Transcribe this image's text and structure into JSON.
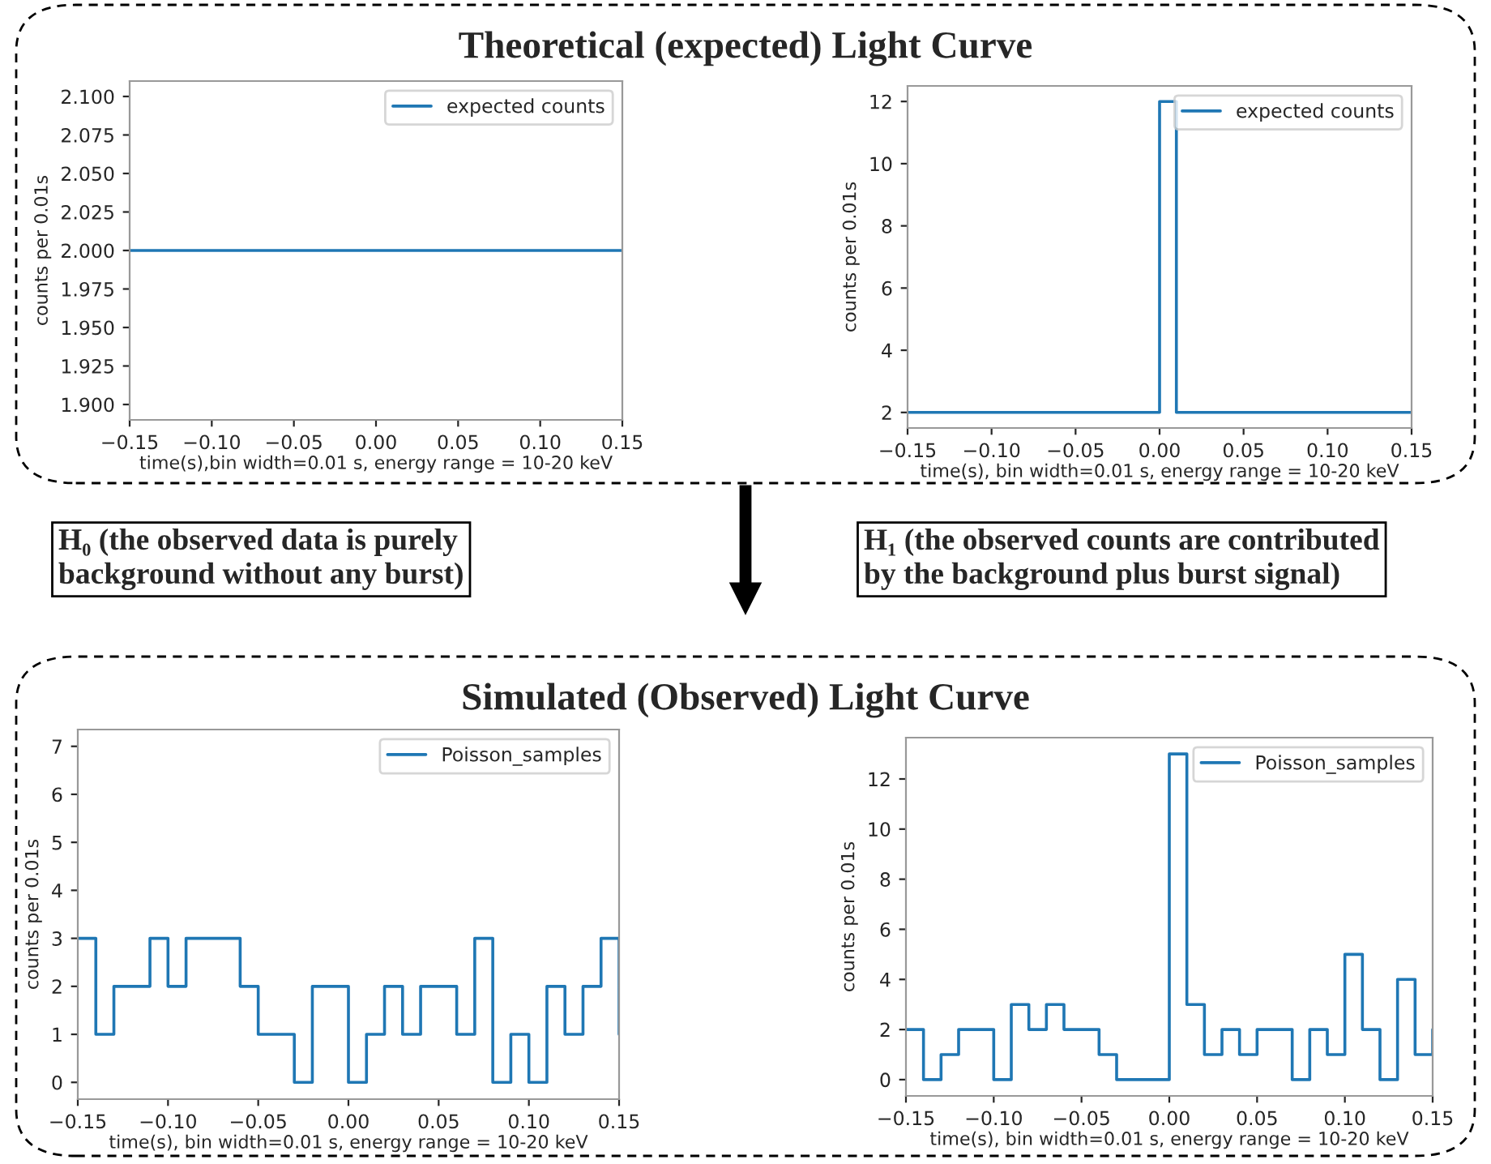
{
  "chart_data": [
    {
      "type": "step",
      "title": "Theoretical (expected) Light Curve",
      "xlabel": "time(s),bin width=0.01 s, energy range = 10-20 keV",
      "ylabel": "counts per 0.01s",
      "annotations": [
        "H₀ (the observed data is purely\nbackground without any burst)"
      ],
      "x": [
        -0.15,
        -0.14,
        -0.13,
        -0.12,
        -0.11,
        -0.1,
        -0.09,
        -0.08,
        -0.07,
        -0.06,
        -0.05,
        -0.04,
        -0.03,
        -0.02,
        -0.01,
        0.0,
        0.01,
        0.02,
        0.03,
        0.04,
        0.05,
        0.06,
        0.07,
        0.08,
        0.09,
        0.1,
        0.11,
        0.12,
        0.13,
        0.14,
        0.15
      ],
      "series": [
        {
          "name": "expected counts",
          "color": "#1f77b4",
          "values": [
            2,
            2,
            2,
            2,
            2,
            2,
            2,
            2,
            2,
            2,
            2,
            2,
            2,
            2,
            2,
            2,
            2,
            2,
            2,
            2,
            2,
            2,
            2,
            2,
            2,
            2,
            2,
            2,
            2,
            2,
            2
          ]
        }
      ],
      "xlim": [
        -0.15,
        0.15
      ],
      "xticks": [
        {
          "value": -0.15,
          "label": "−0.15"
        },
        {
          "value": -0.1,
          "label": "−0.10"
        },
        {
          "value": -0.05,
          "label": "−0.05"
        },
        {
          "value": 0,
          "label": "0.00"
        },
        {
          "value": 0.05,
          "label": "0.05"
        },
        {
          "value": 0.1,
          "label": "0.10"
        },
        {
          "value": 0.15,
          "label": "0.15"
        }
      ],
      "ylim": [
        1.89,
        2.11
      ],
      "yticks": [
        {
          "value": 1.9,
          "label": "1.900"
        },
        {
          "value": 1.925,
          "label": "1.925"
        },
        {
          "value": 1.95,
          "label": "1.950"
        },
        {
          "value": 1.975,
          "label": "1.975"
        },
        {
          "value": 2.0,
          "label": "2.000"
        },
        {
          "value": 2.025,
          "label": "2.025"
        },
        {
          "value": 2.05,
          "label": "2.050"
        },
        {
          "value": 2.075,
          "label": "2.075"
        },
        {
          "value": 2.1,
          "label": "2.100"
        }
      ],
      "legend": "top right",
      "grid": false
    },
    {
      "type": "step",
      "xlabel": "time(s), bin width=0.01 s, energy range = 10-20 keV",
      "ylabel": "counts per 0.01s",
      "annotations": [
        "H₁ (the observed counts are contributed\nby the background plus burst signal)"
      ],
      "x": [
        -0.15,
        -0.14,
        -0.13,
        -0.12,
        -0.11,
        -0.1,
        -0.09,
        -0.08,
        -0.07,
        -0.06,
        -0.05,
        -0.04,
        -0.03,
        -0.02,
        -0.01,
        0.0,
        0.01,
        0.02,
        0.03,
        0.04,
        0.05,
        0.06,
        0.07,
        0.08,
        0.09,
        0.1,
        0.11,
        0.12,
        0.13,
        0.14,
        0.15
      ],
      "series": [
        {
          "name": "expected counts",
          "color": "#1f77b4",
          "values": [
            2,
            2,
            2,
            2,
            2,
            2,
            2,
            2,
            2,
            2,
            2,
            2,
            2,
            2,
            2,
            12,
            2,
            2,
            2,
            2,
            2,
            2,
            2,
            2,
            2,
            2,
            2,
            2,
            2,
            2,
            2
          ]
        }
      ],
      "xlim": [
        -0.15,
        0.15
      ],
      "xticks": [
        {
          "value": -0.15,
          "label": "−0.15"
        },
        {
          "value": -0.1,
          "label": "−0.10"
        },
        {
          "value": -0.05,
          "label": "−0.05"
        },
        {
          "value": 0,
          "label": "0.00"
        },
        {
          "value": 0.05,
          "label": "0.05"
        },
        {
          "value": 0.1,
          "label": "0.10"
        },
        {
          "value": 0.15,
          "label": "0.15"
        }
      ],
      "ylim": [
        1.5,
        12.5
      ],
      "yticks": [
        2,
        4,
        6,
        8,
        10,
        12
      ],
      "legend": "top right",
      "grid": false
    },
    {
      "type": "step",
      "title": "Simulated (Observed) Light Curve",
      "xlabel": "time(s), bin width=0.01 s, energy range = 10-20 keV",
      "ylabel": "counts per 0.01s",
      "x": [
        -0.15,
        -0.14,
        -0.13,
        -0.12,
        -0.11,
        -0.1,
        -0.09,
        -0.08,
        -0.07,
        -0.06,
        -0.05,
        -0.04,
        -0.03,
        -0.02,
        -0.01,
        0.0,
        0.01,
        0.02,
        0.03,
        0.04,
        0.05,
        0.06,
        0.07,
        0.08,
        0.09,
        0.1,
        0.11,
        0.12,
        0.13,
        0.14,
        0.15
      ],
      "series": [
        {
          "name": "Poisson_samples",
          "color": "#1f77b4",
          "values": [
            3,
            1,
            2,
            2,
            3,
            2,
            3,
            3,
            3,
            2,
            1,
            1,
            0,
            2,
            2,
            0,
            1,
            2,
            1,
            2,
            2,
            1,
            3,
            0,
            1,
            0,
            2,
            1,
            2,
            3,
            1
          ]
        }
      ],
      "xlim": [
        -0.15,
        0.15
      ],
      "xticks": [
        {
          "value": -0.15,
          "label": "−0.15"
        },
        {
          "value": -0.1,
          "label": "−0.10"
        },
        {
          "value": -0.05,
          "label": "−0.05"
        },
        {
          "value": 0,
          "label": "0.00"
        },
        {
          "value": 0.05,
          "label": "0.05"
        },
        {
          "value": 0.1,
          "label": "0.10"
        },
        {
          "value": 0.15,
          "label": "0.15"
        }
      ],
      "ylim": [
        -0.35,
        7.35
      ],
      "yticks": [
        0,
        1,
        2,
        3,
        4,
        5,
        6,
        7
      ],
      "legend": "top right",
      "grid": false
    },
    {
      "type": "step",
      "xlabel": "time(s), bin width=0.01 s, energy range = 10-20 keV",
      "ylabel": "counts per 0.01s",
      "x": [
        -0.15,
        -0.14,
        -0.13,
        -0.12,
        -0.11,
        -0.1,
        -0.09,
        -0.08,
        -0.07,
        -0.06,
        -0.05,
        -0.04,
        -0.03,
        -0.02,
        -0.01,
        0.0,
        0.01,
        0.02,
        0.03,
        0.04,
        0.05,
        0.06,
        0.07,
        0.08,
        0.09,
        0.1,
        0.11,
        0.12,
        0.13,
        0.14,
        0.15
      ],
      "series": [
        {
          "name": "Poisson_samples",
          "color": "#1f77b4",
          "values": [
            2,
            0,
            1,
            2,
            2,
            0,
            3,
            2,
            3,
            2,
            2,
            1,
            0,
            0,
            0,
            13,
            3,
            1,
            2,
            1,
            2,
            2,
            0,
            2,
            1,
            5,
            2,
            0,
            4,
            1,
            2
          ]
        }
      ],
      "xlim": [
        -0.15,
        0.15
      ],
      "xticks": [
        {
          "value": -0.15,
          "label": "−0.15"
        },
        {
          "value": -0.1,
          "label": "−0.10"
        },
        {
          "value": -0.05,
          "label": "−0.05"
        },
        {
          "value": 0,
          "label": "0.00"
        },
        {
          "value": 0.05,
          "label": "0.05"
        },
        {
          "value": 0.1,
          "label": "0.10"
        },
        {
          "value": 0.15,
          "label": "0.15"
        }
      ],
      "ylim": [
        -0.65,
        13.65
      ],
      "yticks": [
        0,
        2,
        4,
        6,
        8,
        10,
        12
      ],
      "legend": "top right",
      "grid": false
    }
  ]
}
